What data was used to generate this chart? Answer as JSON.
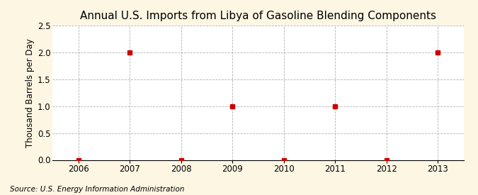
{
  "title": "Annual U.S. Imports from Libya of Gasoline Blending Components",
  "ylabel": "Thousand Barrels per Day",
  "source": "Source: U.S. Energy Information Administration",
  "x_values": [
    2006,
    2007,
    2008,
    2009,
    2010,
    2011,
    2012,
    2013
  ],
  "y_values": [
    0,
    2,
    0,
    1,
    0,
    1,
    0,
    2
  ],
  "xlim": [
    2005.5,
    2013.5
  ],
  "ylim": [
    0,
    2.5
  ],
  "yticks": [
    0.0,
    0.5,
    1.0,
    1.5,
    2.0,
    2.5
  ],
  "xticks": [
    2006,
    2007,
    2008,
    2009,
    2010,
    2011,
    2012,
    2013
  ],
  "marker_color": "#cc0000",
  "marker_size": 4,
  "bg_color": "#fdf6e3",
  "plot_bg_color": "#ffffff",
  "grid_color": "#aaaaaa",
  "title_fontsize": 11,
  "label_fontsize": 8.5,
  "tick_fontsize": 8.5,
  "source_fontsize": 7.5
}
